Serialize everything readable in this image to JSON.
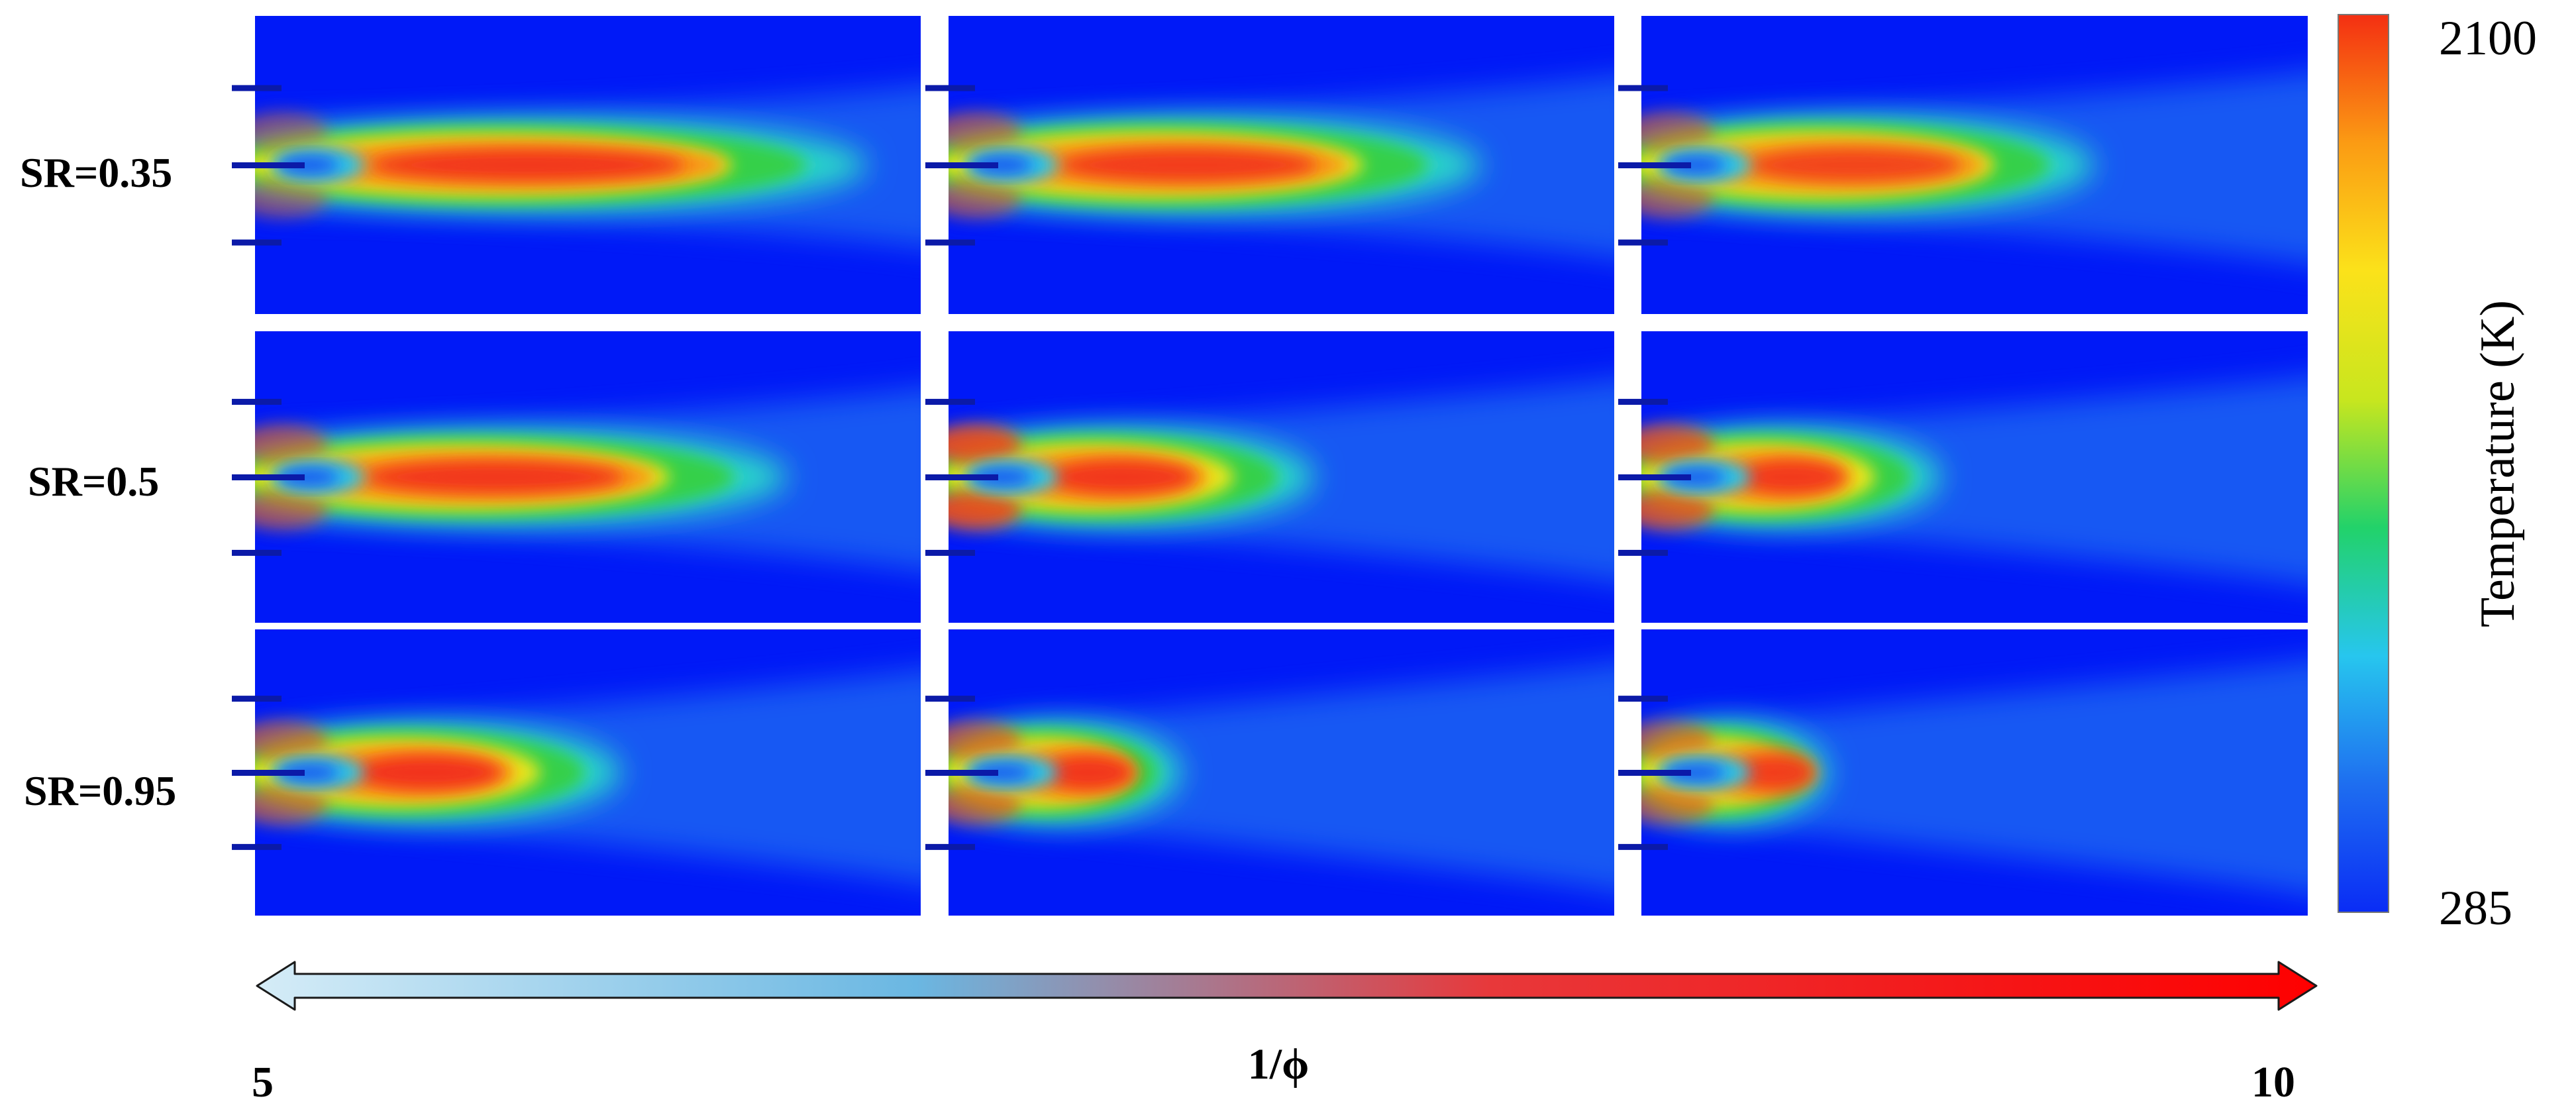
{
  "figure": {
    "rows": [
      {
        "label": "SR=0.35",
        "panels": [
          {
            "flame_length": 0.92,
            "core_length": 0.52,
            "core_intensity": 0.95,
            "spread": 0.1,
            "lip": 0.45
          },
          {
            "flame_length": 0.8,
            "core_length": 0.42,
            "core_intensity": 0.9,
            "spread": 0.18,
            "lip": 0.55
          },
          {
            "flame_length": 0.68,
            "core_length": 0.34,
            "core_intensity": 0.82,
            "spread": 0.22,
            "lip": 0.55
          }
        ]
      },
      {
        "label": "SR=0.5",
        "panels": [
          {
            "flame_length": 0.8,
            "core_length": 0.42,
            "core_intensity": 0.95,
            "spread": 0.2,
            "lip": 0.6
          },
          {
            "flame_length": 0.55,
            "core_length": 0.22,
            "core_intensity": 0.95,
            "spread": 0.28,
            "lip": 0.9
          },
          {
            "flame_length": 0.45,
            "core_length": 0.15,
            "core_intensity": 0.92,
            "spread": 0.3,
            "lip": 0.8
          }
        ]
      },
      {
        "label": "SR=0.95",
        "panels": [
          {
            "flame_length": 0.55,
            "core_length": 0.22,
            "core_intensity": 1.0,
            "spread": 0.34,
            "lip": 0.6
          },
          {
            "flame_length": 0.35,
            "core_length": 0.12,
            "core_intensity": 0.95,
            "spread": 0.4,
            "lip": 0.65
          },
          {
            "flame_length": 0.28,
            "core_length": 0.1,
            "core_intensity": 0.88,
            "spread": 0.42,
            "lip": 0.6
          }
        ]
      }
    ],
    "colorbar": {
      "title": "Temperature (K)",
      "max_label": "2100",
      "min_label": "285",
      "max_value": 2100,
      "min_value": 285,
      "stops": [
        "#0a2cf5",
        "#1e6ef0",
        "#27c6ee",
        "#22d26a",
        "#c8e61e",
        "#fbe21a",
        "#fb9b13",
        "#f42f12"
      ]
    },
    "x_axis": {
      "label": "1/ϕ",
      "min_label": "5",
      "max_label": "10",
      "min_value": 5,
      "max_value": 10,
      "gradient_colors": [
        "#d5ecf7",
        "#6ab7e2",
        "#e8383a",
        "#fe0000"
      ]
    },
    "colors": {
      "background_field": "#0019f7",
      "nozzle": "#0b1aa8",
      "panel_gap": "#ffffff"
    }
  }
}
